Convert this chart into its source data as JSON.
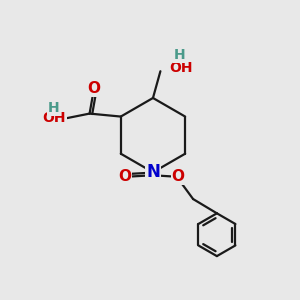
{
  "bg_color": "#e8e8e8",
  "bond_color": "#1a1a1a",
  "atom_colors": {
    "O": "#cc0000",
    "N": "#0000cc",
    "H": "#4a9a8a"
  },
  "lw": 1.6,
  "fs": 11
}
